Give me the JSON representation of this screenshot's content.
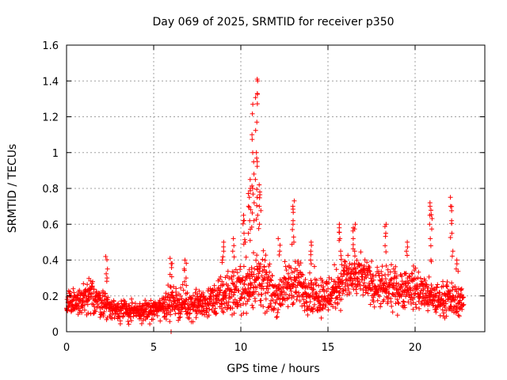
{
  "chart_data": {
    "type": "scatter",
    "title": "Day 069 of 2025, SRMTID for receiver p350",
    "xlabel": "GPS time / hours",
    "ylabel": "SRMTID / TECUs",
    "xlim": [
      0,
      24
    ],
    "ylim": [
      0,
      1.6
    ],
    "xticks": [
      "0",
      "5",
      "10",
      "15",
      "20"
    ],
    "yticks": [
      "0",
      "0.2",
      "0.4",
      "0.6",
      "0.8",
      "1",
      "1.2",
      "1.4",
      "1.6"
    ],
    "grid": true,
    "marker": "+",
    "color": "#ff0000",
    "series_description": "SRMTID values (TECU) sampled through the day, mostly 0.05-0.35, with a storm peak near 11 h reaching ~1.4",
    "envelope": [
      {
        "x": 0.0,
        "base": 0.16,
        "spread": 0.06
      },
      {
        "x": 1.0,
        "base": 0.17,
        "spread": 0.08
      },
      {
        "x": 1.5,
        "base": 0.2,
        "spread": 0.09
      },
      {
        "x": 2.5,
        "base": 0.13,
        "spread": 0.06
      },
      {
        "x": 4.0,
        "base": 0.11,
        "spread": 0.05
      },
      {
        "x": 5.0,
        "base": 0.12,
        "spread": 0.05
      },
      {
        "x": 6.0,
        "base": 0.17,
        "spread": 0.08
      },
      {
        "x": 7.0,
        "base": 0.15,
        "spread": 0.07
      },
      {
        "x": 8.0,
        "base": 0.16,
        "spread": 0.07
      },
      {
        "x": 9.0,
        "base": 0.2,
        "spread": 0.1
      },
      {
        "x": 10.0,
        "base": 0.24,
        "spread": 0.12
      },
      {
        "x": 11.0,
        "base": 0.3,
        "spread": 0.15
      },
      {
        "x": 12.0,
        "base": 0.2,
        "spread": 0.1
      },
      {
        "x": 13.0,
        "base": 0.28,
        "spread": 0.12
      },
      {
        "x": 14.0,
        "base": 0.22,
        "spread": 0.1
      },
      {
        "x": 15.0,
        "base": 0.2,
        "spread": 0.1
      },
      {
        "x": 16.0,
        "base": 0.3,
        "spread": 0.12
      },
      {
        "x": 17.0,
        "base": 0.3,
        "spread": 0.1
      },
      {
        "x": 18.0,
        "base": 0.24,
        "spread": 0.1
      },
      {
        "x": 19.0,
        "base": 0.24,
        "spread": 0.1
      },
      {
        "x": 20.0,
        "base": 0.25,
        "spread": 0.1
      },
      {
        "x": 21.0,
        "base": 0.18,
        "spread": 0.08
      },
      {
        "x": 22.0,
        "base": 0.18,
        "spread": 0.08
      },
      {
        "x": 22.8,
        "base": 0.17,
        "spread": 0.07
      }
    ],
    "spikes": [
      {
        "x": 2.3,
        "values": [
          0.3,
          0.35,
          0.42
        ]
      },
      {
        "x": 6.0,
        "values": [
          0.32,
          0.38,
          0.41
        ]
      },
      {
        "x": 6.8,
        "values": [
          0.3,
          0.35,
          0.4
        ]
      },
      {
        "x": 9.0,
        "values": [
          0.4,
          0.45,
          0.5
        ]
      },
      {
        "x": 9.6,
        "values": [
          0.45,
          0.52
        ]
      },
      {
        "x": 10.2,
        "values": [
          0.5,
          0.55,
          0.62,
          0.65
        ]
      },
      {
        "x": 10.5,
        "values": [
          0.55,
          0.62,
          0.7,
          0.75,
          0.8,
          0.85
        ]
      },
      {
        "x": 10.7,
        "values": [
          0.62,
          0.72,
          0.8,
          0.88,
          1.0,
          1.1,
          1.27
        ]
      },
      {
        "x": 10.9,
        "values": [
          0.65,
          0.75,
          0.85,
          0.95,
          1.0,
          1.17,
          1.33,
          1.4,
          1.41
        ]
      },
      {
        "x": 11.1,
        "values": [
          0.6,
          0.7,
          0.78,
          0.82
        ]
      },
      {
        "x": 12.2,
        "values": [
          0.45,
          0.52
        ]
      },
      {
        "x": 13.0,
        "values": [
          0.5,
          0.57,
          0.62,
          0.7,
          0.73
        ]
      },
      {
        "x": 14.0,
        "values": [
          0.4,
          0.45,
          0.5
        ]
      },
      {
        "x": 15.7,
        "values": [
          0.45,
          0.52,
          0.58,
          0.6
        ]
      },
      {
        "x": 16.5,
        "values": [
          0.45,
          0.52,
          0.58,
          0.6
        ]
      },
      {
        "x": 18.3,
        "values": [
          0.48,
          0.55,
          0.6
        ]
      },
      {
        "x": 19.5,
        "values": [
          0.45,
          0.5
        ]
      },
      {
        "x": 20.9,
        "values": [
          0.4,
          0.52,
          0.6,
          0.65,
          0.7,
          0.72
        ]
      },
      {
        "x": 22.1,
        "values": [
          0.45,
          0.55,
          0.62,
          0.7,
          0.75
        ]
      },
      {
        "x": 22.4,
        "values": [
          0.35,
          0.4
        ]
      }
    ],
    "outliers": [
      {
        "x": 6.0,
        "y": 0.0
      }
    ]
  }
}
